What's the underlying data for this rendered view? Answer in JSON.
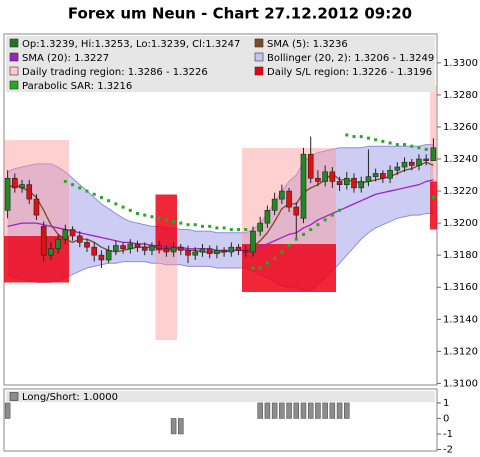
{
  "chart_data": [
    {
      "type": "candlestick",
      "title": "Forex um Neun - Chart 27.12.2012 09:20",
      "ylim": [
        1.3099,
        1.3318
      ],
      "yticks": [
        {
          "value": 1.31,
          "label": "1.3100"
        },
        {
          "value": 1.312,
          "label": "1.3120"
        },
        {
          "value": 1.314,
          "label": "1.3140"
        },
        {
          "value": 1.316,
          "label": "1.3160"
        },
        {
          "value": 1.318,
          "label": "1.3180"
        },
        {
          "value": 1.32,
          "label": "1.3200"
        },
        {
          "value": 1.322,
          "label": "1.3220"
        },
        {
          "value": 1.324,
          "label": "1.3240"
        },
        {
          "value": 1.326,
          "label": "1.3260"
        },
        {
          "value": 1.328,
          "label": "1.3280"
        },
        {
          "value": 1.33,
          "label": "1.3300"
        }
      ],
      "ohlc": {
        "name": "Op:1.3239, Hi:1.3253, Lo:1.3239, Cl:1.3247",
        "color": "#1f7a1f",
        "up_color": "#1f8a1f",
        "down_color": "#dd1111",
        "open": [
          1.3208,
          1.3228,
          1.3222,
          1.3224,
          1.3215,
          1.3198,
          1.318,
          1.3184,
          1.319,
          1.3196,
          1.3192,
          1.3188,
          1.3185,
          1.318,
          1.3177,
          1.3183,
          1.3186,
          1.3184,
          1.3187,
          1.3185,
          1.3183,
          1.3186,
          1.3184,
          1.3182,
          1.3185,
          1.3183,
          1.318,
          1.3182,
          1.3184,
          1.3181,
          1.3183,
          1.3182,
          1.3185,
          1.3183,
          1.3182,
          1.3195,
          1.32,
          1.3208,
          1.3215,
          1.322,
          1.321,
          1.3203,
          1.3243,
          1.3228,
          1.3226,
          1.3232,
          1.3226,
          1.3224,
          1.3228,
          1.3222,
          1.3226,
          1.3229,
          1.3231,
          1.3228,
          1.3233,
          1.3235,
          1.3238,
          1.3236,
          1.324,
          1.3239
        ],
        "high": [
          1.3233,
          1.3231,
          1.3227,
          1.3227,
          1.3218,
          1.3201,
          1.3188,
          1.3193,
          1.3199,
          1.3198,
          1.3195,
          1.319,
          1.3188,
          1.3183,
          1.3186,
          1.3189,
          1.3188,
          1.319,
          1.3189,
          1.3188,
          1.3188,
          1.3189,
          1.3186,
          1.3188,
          1.3187,
          1.3186,
          1.3185,
          1.3187,
          1.3186,
          1.3186,
          1.3185,
          1.3188,
          1.3187,
          1.3186,
          1.3198,
          1.3204,
          1.3211,
          1.3219,
          1.3224,
          1.3222,
          1.3213,
          1.3247,
          1.3254,
          1.3233,
          1.3236,
          1.3235,
          1.3229,
          1.3232,
          1.3231,
          1.3229,
          1.3246,
          1.3234,
          1.3233,
          1.3236,
          1.3238,
          1.3241,
          1.324,
          1.3243,
          1.3243,
          1.3253
        ],
        "low": [
          1.3203,
          1.3219,
          1.3219,
          1.3212,
          1.3202,
          1.3176,
          1.3177,
          1.3181,
          1.3187,
          1.3189,
          1.3185,
          1.3182,
          1.3176,
          1.3172,
          1.3175,
          1.318,
          1.3181,
          1.3181,
          1.3182,
          1.318,
          1.318,
          1.3181,
          1.3179,
          1.3179,
          1.318,
          1.3175,
          1.3177,
          1.3179,
          1.3178,
          1.3178,
          1.3179,
          1.3179,
          1.318,
          1.3179,
          1.3179,
          1.3192,
          1.3197,
          1.3205,
          1.3212,
          1.3207,
          1.319,
          1.32,
          1.3225,
          1.3223,
          1.3223,
          1.3222,
          1.322,
          1.3221,
          1.3219,
          1.3219,
          1.3223,
          1.3226,
          1.3225,
          1.3225,
          1.323,
          1.3232,
          1.3233,
          1.3233,
          1.3236,
          1.3239
        ],
        "close": [
          1.3228,
          1.3222,
          1.3224,
          1.3215,
          1.3205,
          1.318,
          1.3184,
          1.319,
          1.3196,
          1.3192,
          1.3188,
          1.3185,
          1.318,
          1.3177,
          1.3183,
          1.3186,
          1.3184,
          1.3187,
          1.3185,
          1.3183,
          1.3186,
          1.3184,
          1.3182,
          1.3185,
          1.3183,
          1.318,
          1.3182,
          1.3184,
          1.3181,
          1.3183,
          1.3182,
          1.3185,
          1.3183,
          1.3182,
          1.3195,
          1.32,
          1.3208,
          1.3215,
          1.322,
          1.321,
          1.3205,
          1.3243,
          1.3228,
          1.3226,
          1.3232,
          1.3226,
          1.3224,
          1.3228,
          1.3222,
          1.3226,
          1.3229,
          1.3231,
          1.3228,
          1.3233,
          1.3235,
          1.3238,
          1.3236,
          1.324,
          1.3239,
          1.3247
        ]
      },
      "lines": [
        {
          "name": "SMA (5): 1.3236",
          "color": "#7a4a2a",
          "values": [
            1.3222,
            1.3224,
            1.3222,
            1.322,
            1.3216,
            1.3208,
            1.3199,
            1.3193,
            1.319,
            1.3188,
            1.319,
            1.319,
            1.3188,
            1.3185,
            1.3183,
            1.3182,
            1.3183,
            1.3184,
            1.3185,
            1.3185,
            1.3185,
            1.3185,
            1.3184,
            1.3184,
            1.3184,
            1.3183,
            1.3183,
            1.3182,
            1.3182,
            1.3182,
            1.3182,
            1.3183,
            1.3183,
            1.3183,
            1.3185,
            1.3189,
            1.3194,
            1.3201,
            1.3209,
            1.3212,
            1.3212,
            1.3219,
            1.3222,
            1.3224,
            1.3227,
            1.3231,
            1.3227,
            1.3227,
            1.3226,
            1.3225,
            1.3226,
            1.3227,
            1.3228,
            1.3229,
            1.3231,
            1.3233,
            1.3234,
            1.3236,
            1.3238,
            1.3236
          ]
        },
        {
          "name": "SMA (20): 1.3227",
          "color": "#a020c8",
          "values": [
            1.3198,
            1.3199,
            1.32,
            1.32,
            1.32,
            1.3199,
            1.3198,
            1.3197,
            1.3196,
            1.3195,
            1.3194,
            1.3193,
            1.3192,
            1.3191,
            1.319,
            1.3189,
            1.3188,
            1.3188,
            1.3187,
            1.3187,
            1.3186,
            1.3186,
            1.3185,
            1.3185,
            1.3185,
            1.3184,
            1.3184,
            1.3184,
            1.3184,
            1.3183,
            1.3183,
            1.3183,
            1.3183,
            1.3183,
            1.3184,
            1.3185,
            1.3187,
            1.3189,
            1.3191,
            1.3193,
            1.3194,
            1.3197,
            1.3199,
            1.3202,
            1.3204,
            1.3206,
            1.3208,
            1.321,
            1.3212,
            1.3214,
            1.3216,
            1.3218,
            1.3219,
            1.322,
            1.3221,
            1.3222,
            1.3223,
            1.3224,
            1.3226,
            1.3227
          ]
        }
      ],
      "bollinger": {
        "name": "Bollinger (20, 2): 1.3206 - 1.3249",
        "color": "#c4c4f2",
        "stroke": "#8c8ce0",
        "upper": [
          1.3232,
          1.3234,
          1.3235,
          1.3236,
          1.3237,
          1.3237,
          1.3237,
          1.3235,
          1.3232,
          1.3228,
          1.3224,
          1.322,
          1.3216,
          1.3212,
          1.3209,
          1.3206,
          1.3203,
          1.3201,
          1.32,
          1.3199,
          1.3198,
          1.3198,
          1.3197,
          1.3197,
          1.3196,
          1.3196,
          1.3195,
          1.3195,
          1.3195,
          1.3194,
          1.3194,
          1.3194,
          1.3194,
          1.3194,
          1.3196,
          1.32,
          1.3206,
          1.3213,
          1.322,
          1.3226,
          1.323,
          1.3238,
          1.3242,
          1.3244,
          1.3245,
          1.3246,
          1.3247,
          1.3247,
          1.3247,
          1.3247,
          1.3248,
          1.3248,
          1.3248,
          1.3248,
          1.3248,
          1.3248,
          1.3248,
          1.3248,
          1.3249,
          1.3249
        ],
        "lower": [
          1.3168,
          1.3166,
          1.3165,
          1.3164,
          1.3163,
          1.3163,
          1.3163,
          1.3164,
          1.3166,
          1.3168,
          1.317,
          1.3172,
          1.3173,
          1.3174,
          1.3175,
          1.3175,
          1.3176,
          1.3176,
          1.3176,
          1.3176,
          1.3175,
          1.3175,
          1.3174,
          1.3174,
          1.3174,
          1.3173,
          1.3173,
          1.3173,
          1.3173,
          1.3172,
          1.3172,
          1.3172,
          1.3172,
          1.3172,
          1.317,
          1.3168,
          1.3166,
          1.3163,
          1.3161,
          1.316,
          1.316,
          1.3158,
          1.3158,
          1.3162,
          1.3166,
          1.317,
          1.3175,
          1.318,
          1.3185,
          1.319,
          1.3194,
          1.3197,
          1.3199,
          1.3201,
          1.3203,
          1.3204,
          1.3205,
          1.3205,
          1.3206,
          1.3206
        ]
      },
      "regions": [
        {
          "name": "Daily trading region: 1.3286 - 1.3226",
          "color": "rgba(255,150,150,0.45)",
          "upper": [
            1.3252,
            1.3252,
            1.3252,
            1.3252,
            1.3252,
            1.3252,
            1.3252,
            1.3252,
            1.3252,
            null,
            null,
            null,
            null,
            null,
            null,
            null,
            null,
            null,
            null,
            null,
            null,
            1.3183,
            1.3183,
            1.3183,
            null,
            null,
            null,
            null,
            null,
            null,
            null,
            null,
            null,
            1.3247,
            1.3247,
            1.3247,
            1.3247,
            1.3247,
            1.3247,
            1.3247,
            1.3247,
            1.3247,
            1.3247,
            1.3247,
            1.3247,
            1.3247,
            null,
            null,
            null,
            null,
            null,
            null,
            null,
            null,
            null,
            null,
            null,
            null,
            null,
            1.3286
          ],
          "lower": [
            1.3192,
            1.3192,
            1.3192,
            1.3192,
            1.3192,
            1.3192,
            1.3192,
            1.3192,
            1.3192,
            null,
            null,
            null,
            null,
            null,
            null,
            null,
            null,
            null,
            null,
            null,
            null,
            1.3127,
            1.3127,
            1.3127,
            null,
            null,
            null,
            null,
            null,
            null,
            null,
            null,
            null,
            1.3187,
            1.3187,
            1.3187,
            1.3187,
            1.3187,
            1.3187,
            1.3187,
            1.3187,
            1.3187,
            1.3187,
            1.3187,
            1.3187,
            1.3187,
            null,
            null,
            null,
            null,
            null,
            null,
            null,
            null,
            null,
            null,
            null,
            null,
            null,
            1.3226
          ]
        },
        {
          "name": "Daily S/L region: 1.3226 - 1.3196",
          "color": "rgba(238,0,20,0.85)",
          "upper": [
            1.3192,
            1.3192,
            1.3192,
            1.3192,
            1.3192,
            1.3192,
            1.3192,
            1.3192,
            1.3192,
            null,
            null,
            null,
            null,
            null,
            null,
            null,
            null,
            null,
            null,
            null,
            null,
            1.3218,
            1.3218,
            1.3218,
            null,
            null,
            null,
            null,
            null,
            null,
            null,
            null,
            null,
            1.3187,
            1.3187,
            1.3187,
            1.3187,
            1.3187,
            1.3187,
            1.3187,
            1.3187,
            1.3187,
            1.3187,
            1.3187,
            1.3187,
            1.3187,
            null,
            null,
            null,
            null,
            null,
            null,
            null,
            null,
            null,
            null,
            null,
            null,
            null,
            1.3226
          ],
          "lower": [
            1.3163,
            1.3163,
            1.3163,
            1.3163,
            1.3163,
            1.3163,
            1.3163,
            1.3163,
            1.3163,
            null,
            null,
            null,
            null,
            null,
            null,
            null,
            null,
            null,
            null,
            null,
            null,
            1.3183,
            1.3183,
            1.3183,
            null,
            null,
            null,
            null,
            null,
            null,
            null,
            null,
            null,
            1.3157,
            1.3157,
            1.3157,
            1.3157,
            1.3157,
            1.3157,
            1.3157,
            1.3157,
            1.3157,
            1.3157,
            1.3157,
            1.3157,
            1.3157,
            null,
            null,
            null,
            null,
            null,
            null,
            null,
            null,
            null,
            null,
            null,
            null,
            null,
            1.3196
          ]
        }
      ],
      "sar": {
        "name": "Parabolic SAR: 1.3216",
        "color": "#22aa22",
        "values": [
          null,
          null,
          null,
          null,
          null,
          null,
          null,
          null,
          1.3226,
          1.3224,
          1.3222,
          1.322,
          1.3218,
          1.3216,
          1.3214,
          1.3212,
          1.321,
          1.3208,
          1.3206,
          1.3205,
          1.3204,
          1.3203,
          1.3202,
          1.3201,
          1.32,
          1.3199,
          1.3199,
          1.3198,
          1.3198,
          1.3197,
          1.3197,
          1.3196,
          1.3196,
          1.3196,
          1.3172,
          1.3172,
          1.3175,
          1.3178,
          1.3182,
          1.3186,
          1.319,
          1.3193,
          1.3196,
          1.3199,
          1.3202,
          1.3205,
          1.3208,
          1.3255,
          1.3254,
          1.3254,
          1.3253,
          1.3252,
          1.3251,
          1.325,
          1.3249,
          1.3249,
          1.3248,
          1.3247,
          1.3246,
          1.3216
        ]
      }
    },
    {
      "type": "bar",
      "ylim": [
        -2.1,
        1.9
      ],
      "yticks": [
        1,
        0,
        -1,
        -2
      ],
      "series": [
        {
          "name": "Long/Short: 1.0000",
          "color": "#8c8c8c",
          "values": [
            1,
            0,
            0,
            0,
            0,
            0,
            0,
            0,
            0,
            0,
            0,
            0,
            0,
            0,
            0,
            0,
            0,
            0,
            0,
            0,
            0,
            0,
            0,
            -1,
            -1,
            0,
            0,
            0,
            0,
            0,
            0,
            0,
            0,
            0,
            0,
            1,
            1,
            1,
            1,
            1,
            1,
            1,
            1,
            1,
            1,
            1,
            1,
            1,
            0,
            0,
            0,
            0,
            0,
            0,
            0,
            0,
            0,
            0,
            0,
            0
          ]
        }
      ]
    }
  ]
}
